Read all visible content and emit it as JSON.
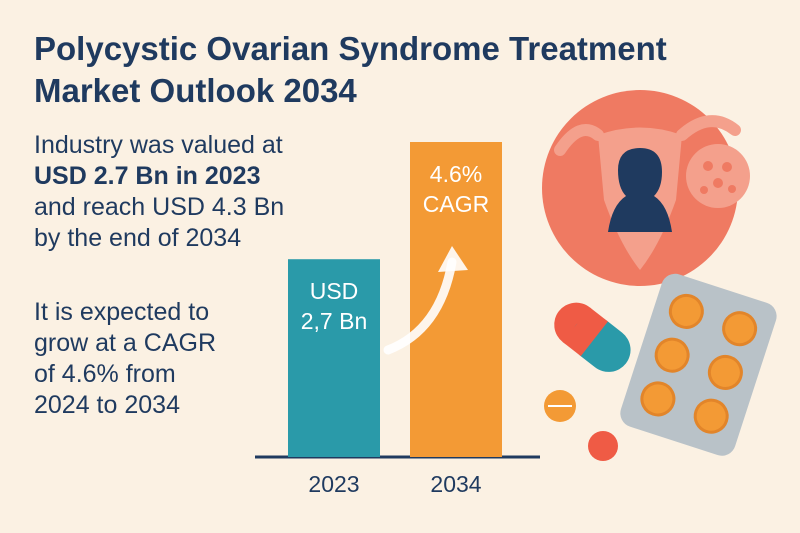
{
  "title": {
    "line1": "Polycystic Ovarian Syndrome Treatment",
    "line2": "Market Outlook 2034"
  },
  "summary": {
    "line1": "Industry was valued at",
    "line2": "USD 2.7 Bn in 2023",
    "line3": "and reach USD 4.3 Bn",
    "line4": "by the end of 2034"
  },
  "growth": {
    "line1": "It is expected to",
    "line2": "grow at a CAGR",
    "line3": "of 4.6% from",
    "line4": "2024 to 2034"
  },
  "chart_data": {
    "type": "bar",
    "categories": [
      "2023",
      "2034"
    ],
    "values": [
      2.7,
      4.3
    ],
    "bar_labels": [
      [
        "USD",
        "2,7 Bn"
      ],
      [
        "4.6%",
        "CAGR"
      ]
    ],
    "colors": [
      "#2a9aa9",
      "#f39a35"
    ],
    "annotation": "growth arrow from 2023 bar toward 2034 bar",
    "title": "",
    "xlabel": "",
    "ylabel": ""
  },
  "colors": {
    "background": "#fbf1e3",
    "title": "#1f3a5f",
    "bar_2023": "#2a9aa9",
    "bar_2034": "#f39a35",
    "illustration_accent": "#ef7a62"
  },
  "icons": [
    "uterus-silhouette-icon",
    "capsule-icon",
    "pill-blister-pack-icon",
    "tablet-icon"
  ]
}
